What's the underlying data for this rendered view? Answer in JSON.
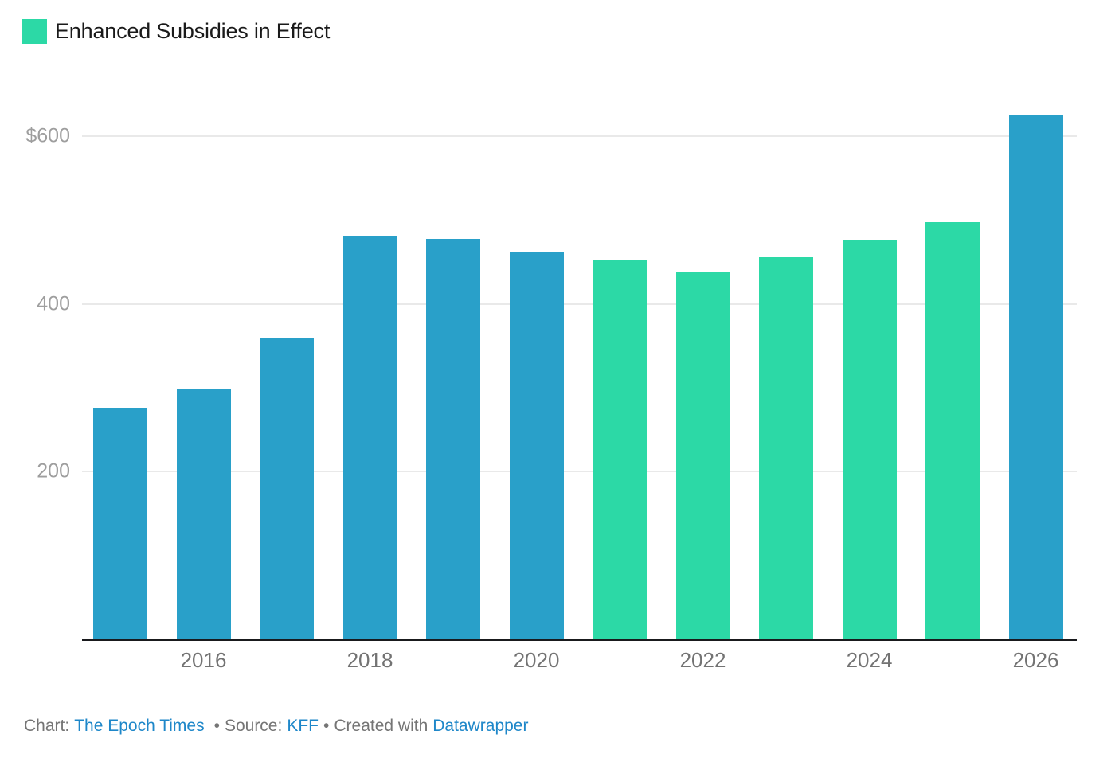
{
  "legend": {
    "label": "Enhanced Subsidies in Effect",
    "swatch_color": "#2cd9a6"
  },
  "chart_data": {
    "type": "bar",
    "categories": [
      "2015",
      "2016",
      "2017",
      "2018",
      "2019",
      "2020",
      "2021",
      "2022",
      "2023",
      "2024",
      "2025",
      "2026"
    ],
    "values": [
      276,
      299,
      359,
      481,
      478,
      462,
      452,
      438,
      456,
      477,
      497,
      625
    ],
    "enhanced_years": [
      "2021",
      "2022",
      "2023",
      "2024",
      "2025"
    ],
    "legend_label": "Enhanced Subsidies in Effect",
    "bar_color_default": "#29a0c9",
    "bar_color_enhanced": "#2cd9a6",
    "yticks": [
      {
        "value": 600,
        "label": "$600"
      },
      {
        "value": 400,
        "label": "400"
      },
      {
        "value": 200,
        "label": "200"
      }
    ],
    "xticks": [
      "2016",
      "2018",
      "2020",
      "2022",
      "2024",
      "2026"
    ],
    "ylim": [
      0,
      660
    ],
    "grid": "horizontal",
    "legend_position": "top-left",
    "title": ""
  },
  "footer": {
    "chart_label": "Chart:",
    "chart_credit": "The Epoch Times",
    "bullet": "•",
    "source_label": "Source:",
    "source_name": "KFF",
    "created_label": "Created with",
    "tool_name": "Datawrapper"
  }
}
